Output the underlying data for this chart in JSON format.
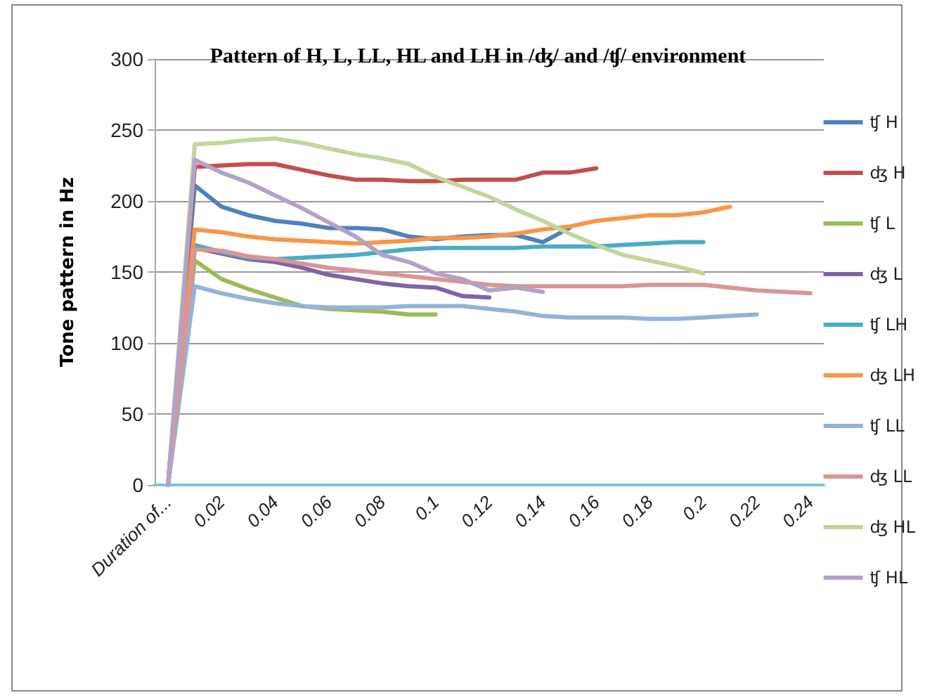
{
  "chart_data": {
    "type": "line",
    "title": "Pattern of H, L, LL, HL and LH in /ʤ/ and /ʧ/ environment",
    "ylabel": "Tone pattern in Hz",
    "categories": [
      "Duration of...",
      null,
      "0.02",
      null,
      "0.04",
      null,
      "0.06",
      null,
      "0.08",
      null,
      "0.1",
      null,
      "0.12",
      null,
      "0.14",
      null,
      "0.16",
      null,
      "0.18",
      null,
      "0.2",
      null,
      "0.22",
      null,
      "0.24"
    ],
    "series": [
      {
        "name": "ʧ H",
        "color": "#4f81bd",
        "values": [
          0,
          211,
          196,
          190,
          186,
          184,
          181,
          181,
          180,
          175,
          173,
          175,
          176,
          176,
          171,
          181,
          null,
          null,
          null,
          null,
          null,
          null,
          null,
          null,
          null
        ]
      },
      {
        "name": "ʤ H",
        "color": "#c0504d",
        "values": [
          0,
          224,
          225,
          226,
          226,
          222,
          218,
          215,
          215,
          214,
          214,
          215,
          215,
          215,
          220,
          220,
          223,
          null,
          null,
          null,
          null,
          null,
          null,
          null,
          null
        ]
      },
      {
        "name": "ʧ L",
        "color": "#9bbb59",
        "values": [
          0,
          158,
          145,
          138,
          132,
          126,
          124,
          123,
          122,
          120,
          120,
          null,
          null,
          null,
          null,
          null,
          null,
          null,
          null,
          null,
          null,
          null,
          null,
          null,
          null
        ]
      },
      {
        "name": "ʤ L",
        "color": "#8064a2",
        "values": [
          0,
          167,
          163,
          159,
          157,
          153,
          148,
          145,
          142,
          140,
          139,
          133,
          132,
          null,
          null,
          null,
          null,
          null,
          null,
          null,
          null,
          null,
          null,
          null,
          null
        ]
      },
      {
        "name": "ʧ LH",
        "color": "#4bacc6",
        "values": [
          0,
          169,
          164,
          160,
          159,
          160,
          161,
          162,
          164,
          166,
          167,
          167,
          167,
          167,
          168,
          168,
          168,
          169,
          170,
          171,
          171,
          null,
          null,
          null,
          null
        ]
      },
      {
        "name": "ʤ LH",
        "color": "#f79646",
        "values": [
          0,
          180,
          178,
          175,
          173,
          172,
          171,
          170,
          171,
          172,
          174,
          174,
          175,
          177,
          180,
          182,
          186,
          188,
          190,
          190,
          192,
          196,
          null,
          null,
          null
        ]
      },
      {
        "name": "ʧ LL",
        "color": "#95b3d7",
        "values": [
          0,
          140,
          135,
          131,
          128,
          126,
          125,
          125,
          125,
          126,
          126,
          126,
          124,
          122,
          119,
          118,
          118,
          118,
          117,
          117,
          118,
          119,
          120,
          null,
          null
        ]
      },
      {
        "name": "ʤ LL",
        "color": "#d99694",
        "values": [
          0,
          166,
          165,
          161,
          159,
          156,
          153,
          151,
          149,
          147,
          145,
          143,
          141,
          140,
          140,
          140,
          140,
          140,
          141,
          141,
          141,
          139,
          137,
          136,
          135
        ]
      },
      {
        "name": "ʤ HL",
        "color": "#c3d69b",
        "values": [
          0,
          240,
          241,
          243,
          244,
          241,
          237,
          233,
          230,
          226,
          217,
          210,
          203,
          194,
          186,
          177,
          169,
          162,
          158,
          154,
          149,
          null,
          null,
          null,
          null
        ]
      },
      {
        "name": "ʧ HL",
        "color": "#b3a2c7",
        "values": [
          0,
          229,
          220,
          213,
          204,
          195,
          185,
          175,
          162,
          157,
          149,
          145,
          137,
          139,
          136,
          null,
          null,
          null,
          null,
          null,
          null,
          null,
          null,
          null,
          null
        ]
      }
    ],
    "ylim": [
      0,
      300
    ],
    "yticks": [
      0,
      50,
      100,
      150,
      200,
      250,
      300
    ],
    "grid": "y",
    "legend": "right",
    "marker": "none",
    "line_style": "solid"
  }
}
